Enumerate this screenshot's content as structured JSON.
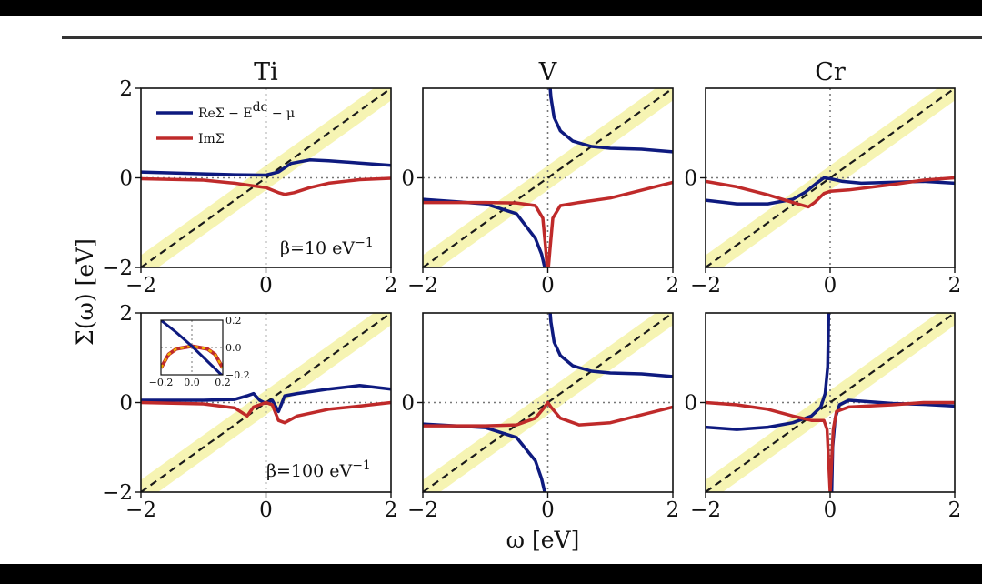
{
  "figure": {
    "xlabel": "ω [eV]",
    "ylabel": "Σ(ω)  [eV]",
    "column_titles": [
      "Ti",
      "V",
      "Cr"
    ],
    "beta_labels": [
      "β=10 eV",
      "β=100 eV"
    ],
    "beta_superscript": "−1",
    "legend": [
      "ReΣ − E",
      "ImΣ"
    ],
    "legend_sup": "dc",
    "legend_tail": " − μ",
    "colors": {
      "re": "#0e1a7f",
      "im": "#bf2a2a",
      "diag": "#1a1a1a",
      "band": "#f4f1a0"
    }
  },
  "chart_data": [
    {
      "type": "line",
      "title": "Ti",
      "row": 0,
      "xlim": [
        -2,
        2
      ],
      "ylim": [
        -2,
        2
      ],
      "xticks": [
        -2,
        0,
        2
      ],
      "yticks": [
        -2,
        0,
        2
      ],
      "series": [
        {
          "name": "ReΣ − Edc − μ",
          "x": [
            -2,
            -1,
            -0.5,
            0,
            0.2,
            0.4,
            0.7,
            1,
            1.5,
            2
          ],
          "y": [
            0.13,
            0.09,
            0.07,
            0.06,
            0.13,
            0.32,
            0.4,
            0.38,
            0.33,
            0.28
          ]
        },
        {
          "name": "ImΣ",
          "x": [
            -2,
            -1,
            -0.5,
            0,
            0.2,
            0.3,
            0.45,
            0.7,
            1,
            1.5,
            2
          ],
          "y": [
            -0.02,
            -0.05,
            -0.12,
            -0.22,
            -0.33,
            -0.37,
            -0.33,
            -0.22,
            -0.12,
            -0.04,
            -0.01
          ]
        }
      ]
    },
    {
      "type": "line",
      "title": "V",
      "row": 0,
      "xlim": [
        -2,
        2
      ],
      "ylim": [
        -2,
        2
      ],
      "xticks": [
        -2,
        0,
        2
      ],
      "yticks": [
        0
      ],
      "series": [
        {
          "name": "ReΣ − Edc − μ",
          "segments": [
            {
              "x": [
                -2,
                -1,
                -0.5,
                -0.2,
                -0.1,
                -0.05,
                -0.02
              ],
              "y": [
                -0.48,
                -0.58,
                -0.8,
                -1.35,
                -1.7,
                -2,
                -2.3
              ]
            },
            {
              "x": [
                0.02,
                0.05,
                0.1,
                0.2,
                0.4,
                0.7,
                1,
                1.5,
                2
              ],
              "y": [
                2.3,
                1.8,
                1.35,
                1.05,
                0.82,
                0.7,
                0.66,
                0.64,
                0.58
              ]
            }
          ]
        },
        {
          "name": "ImΣ",
          "x": [
            -2,
            -1,
            -0.5,
            -0.2,
            -0.08,
            -0.04,
            -0.01,
            0.01,
            0.04,
            0.08,
            0.2,
            0.5,
            1,
            2
          ],
          "y": [
            -0.55,
            -0.55,
            -0.56,
            -0.62,
            -0.9,
            -1.5,
            -2,
            -2,
            -1.5,
            -0.9,
            -0.62,
            -0.55,
            -0.45,
            -0.1
          ]
        }
      ]
    },
    {
      "type": "line",
      "title": "Cr",
      "row": 0,
      "xlim": [
        -2,
        2
      ],
      "ylim": [
        -2,
        2
      ],
      "xticks": [
        -2,
        0,
        2
      ],
      "yticks": [
        0
      ],
      "series": [
        {
          "name": "ReΣ − Edc − μ",
          "x": [
            -2,
            -1.5,
            -1,
            -0.6,
            -0.4,
            -0.2,
            -0.1,
            0,
            0.2,
            0.5,
            1,
            1.5,
            2
          ],
          "y": [
            -0.5,
            -0.58,
            -0.58,
            -0.48,
            -0.32,
            -0.1,
            0,
            -0.02,
            -0.08,
            -0.12,
            -0.1,
            -0.08,
            -0.12
          ]
        },
        {
          "name": "ImΣ",
          "x": [
            -2,
            -1.5,
            -1,
            -0.6,
            -0.35,
            -0.25,
            -0.1,
            0,
            0.3,
            1,
            1.5,
            2
          ],
          "y": [
            -0.08,
            -0.2,
            -0.38,
            -0.55,
            -0.65,
            -0.55,
            -0.35,
            -0.3,
            -0.27,
            -0.15,
            -0.05,
            0
          ]
        }
      ]
    },
    {
      "type": "line",
      "title": "",
      "row": 1,
      "xlim": [
        -2,
        2
      ],
      "ylim": [
        -2,
        2
      ],
      "xticks": [
        -2,
        0,
        2
      ],
      "yticks": [
        -2,
        0,
        2
      ],
      "series": [
        {
          "name": "ReΣ − Edc − μ",
          "x": [
            -2,
            -1,
            -0.5,
            -0.3,
            -0.2,
            -0.1,
            0,
            0.1,
            0.2,
            0.3,
            0.5,
            1,
            1.5,
            2
          ],
          "y": [
            0.05,
            0.05,
            0.07,
            0.15,
            0.2,
            0.05,
            -0.02,
            0.05,
            -0.2,
            0.15,
            0.2,
            0.3,
            0.38,
            0.3
          ]
        },
        {
          "name": "ImΣ",
          "x": [
            -2,
            -1,
            -0.5,
            -0.3,
            -0.2,
            -0.1,
            0,
            0.1,
            0.2,
            0.3,
            0.5,
            1,
            1.5,
            2
          ],
          "y": [
            0,
            -0.03,
            -0.12,
            -0.3,
            -0.1,
            -0.05,
            0,
            -0.05,
            -0.4,
            -0.45,
            -0.3,
            -0.15,
            -0.08,
            0
          ]
        }
      ]
    },
    {
      "type": "line",
      "title": "",
      "row": 1,
      "xlim": [
        -2,
        2
      ],
      "ylim": [
        -2,
        2
      ],
      "xticks": [
        -2,
        0,
        2
      ],
      "yticks": [
        0
      ],
      "series": [
        {
          "name": "ReΣ − Edc − μ",
          "segments": [
            {
              "x": [
                -2,
                -1,
                -0.5,
                -0.2,
                -0.1,
                -0.05,
                -0.02
              ],
              "y": [
                -0.48,
                -0.56,
                -0.78,
                -1.3,
                -1.7,
                -2,
                -2.3
              ]
            },
            {
              "x": [
                0.02,
                0.05,
                0.1,
                0.2,
                0.4,
                0.7,
                1,
                1.5,
                2
              ],
              "y": [
                2.3,
                1.8,
                1.35,
                1.05,
                0.82,
                0.7,
                0.66,
                0.64,
                0.58
              ]
            }
          ]
        },
        {
          "name": "ImΣ",
          "x": [
            -2,
            -1,
            -0.5,
            -0.2,
            -0.05,
            0,
            0.05,
            0.2,
            0.5,
            1,
            2
          ],
          "y": [
            -0.52,
            -0.52,
            -0.5,
            -0.35,
            -0.1,
            0,
            -0.1,
            -0.35,
            -0.5,
            -0.45,
            -0.1
          ]
        }
      ]
    },
    {
      "type": "line",
      "title": "",
      "row": 1,
      "xlim": [
        -2,
        2
      ],
      "ylim": [
        -2,
        2
      ],
      "xticks": [
        -2,
        0,
        2
      ],
      "yticks": [
        0
      ],
      "series": [
        {
          "name": "ReΣ − Edc − μ",
          "segments": [
            {
              "x": [
                -2,
                -1.5,
                -1,
                -0.6,
                -0.3,
                -0.15,
                -0.08,
                -0.04,
                -0.02
              ],
              "y": [
                -0.55,
                -0.6,
                -0.55,
                -0.45,
                -0.3,
                -0.1,
                0.2,
                0.8,
                2.3
              ]
            },
            {
              "x": [
                0.02,
                0.04,
                0.08,
                0.15,
                0.3,
                0.6,
                1,
                1.5,
                2
              ],
              "y": [
                -2.3,
                -1,
                -0.35,
                -0.05,
                0.05,
                0.02,
                -0.02,
                -0.04,
                -0.08
              ]
            }
          ]
        },
        {
          "name": "ImΣ",
          "x": [
            -2,
            -1.5,
            -1,
            -0.6,
            -0.3,
            -0.1,
            -0.05,
            0,
            0.05,
            0.1,
            0.3,
            1,
            1.5,
            2
          ],
          "y": [
            0,
            -0.05,
            -0.15,
            -0.3,
            -0.4,
            -0.4,
            -0.6,
            -2,
            -0.6,
            -0.2,
            -0.1,
            -0.05,
            0,
            0
          ]
        }
      ]
    }
  ],
  "inset": {
    "xlim": [
      -0.2,
      0.2
    ],
    "ylim": [
      -0.2,
      0.2
    ],
    "xticks": [
      "-0.2",
      "0.0",
      "0.2"
    ],
    "yticks": [
      "0.2",
      "0.0",
      "-0.2"
    ],
    "re": {
      "x": [
        -0.2,
        -0.1,
        0,
        0.1,
        0.2
      ],
      "y": [
        0.2,
        0.11,
        0.01,
        -0.1,
        -0.21
      ]
    },
    "im": {
      "x": [
        -0.2,
        -0.15,
        -0.1,
        0,
        0.1,
        0.15,
        0.2
      ],
      "y": [
        -0.15,
        -0.05,
        -0.01,
        0.01,
        -0.01,
        -0.05,
        -0.15
      ]
    }
  }
}
